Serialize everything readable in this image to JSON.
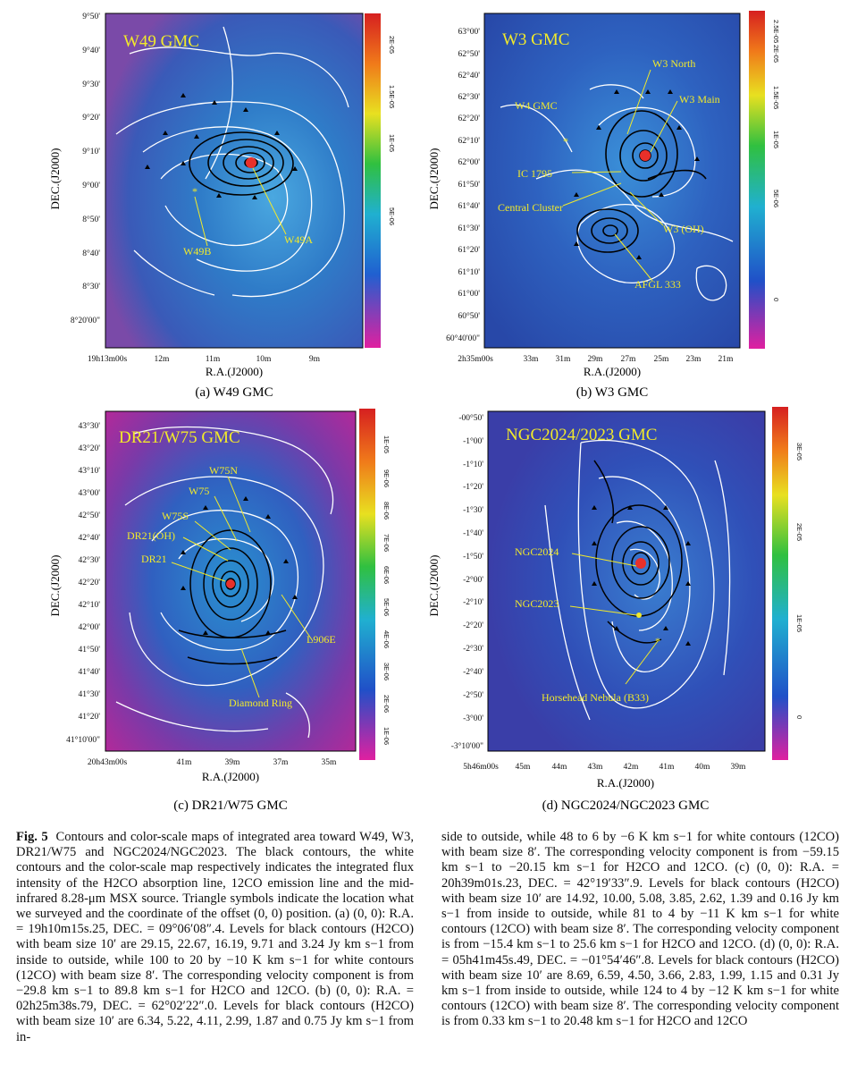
{
  "figure": {
    "panels": [
      {
        "id": "a",
        "title": "W49 GMC",
        "caption": "(a)  W49 GMC",
        "xlabel": "R.A.(J2000)",
        "ylabel": "DEC.(J2000)",
        "yticks": [
          "9°50'",
          "9°40'",
          "9°30'",
          "9°20'",
          "9°10'",
          "9°00'",
          "8°50'",
          "8°40'",
          "8°30'",
          "8°20'00\""
        ],
        "xticks": [
          "19h13m00s",
          "12m",
          "11m",
          "10m",
          "9m"
        ],
        "colorbar_ticks": [
          "2E-05",
          "1.5E-05",
          "1E-05",
          "5E-06"
        ],
        "annotations": [
          "W49B",
          "W49A"
        ]
      },
      {
        "id": "b",
        "title": "W3 GMC",
        "caption": "(b)  W3 GMC",
        "xlabel": "R.A.(J2000)",
        "ylabel": "DEC.(J2000)",
        "yticks": [
          "63°00'",
          "62°50'",
          "62°40'",
          "62°30'",
          "62°20'",
          "62°10'",
          "62°00'",
          "61°50'",
          "61°40'",
          "61°30'",
          "61°20'",
          "61°10'",
          "61°00'",
          "60°50'",
          "60°40'00\""
        ],
        "xticks": [
          "2h35m00s",
          "33m",
          "31m",
          "29m",
          "27m",
          "25m",
          "23m",
          "21m"
        ],
        "colorbar_ticks": [
          "2.5E-05",
          "2E-05",
          "1.5E-05",
          "1E-05",
          "5E-06",
          "0"
        ],
        "annotations": [
          "W3 North",
          "W3 Main",
          "W4 GMC",
          "IC 1795",
          "Central Cluster",
          "W3 (OH)",
          "AFGL 333"
        ]
      },
      {
        "id": "c",
        "title": "DR21/W75 GMC",
        "caption": "(c)  DR21/W75 GMC",
        "xlabel": "R.A.(J2000)",
        "ylabel": "DEC.(J2000)",
        "yticks": [
          "43°30'",
          "43°20'",
          "43°10'",
          "43°00'",
          "42°50'",
          "42°40'",
          "42°30'",
          "42°20'",
          "42°10'",
          "42°00'",
          "41°50'",
          "41°40'",
          "41°30'",
          "41°20'",
          "41°10'00\""
        ],
        "xticks": [
          "20h43m00s",
          "41m",
          "39m",
          "37m",
          "35m"
        ],
        "colorbar_ticks": [
          "1E-05",
          "9E-06",
          "8E-06",
          "7E-06",
          "6E-06",
          "5E-06",
          "4E-06",
          "3E-06",
          "2E-06",
          "1E-06"
        ],
        "annotations": [
          "W75N",
          "W75",
          "W75S",
          "DR21(OH)",
          "DR21",
          "L906E",
          "Diamond Ring"
        ]
      },
      {
        "id": "d",
        "title": "NGC2024/2023 GMC",
        "caption": "(d)  NGC2024/NGC2023 GMC",
        "xlabel": "R.A.(J2000)",
        "ylabel": "DEC.(J2000)",
        "yticks": [
          "-00°50'",
          "-1°00'",
          "-1°10'",
          "-1°20'",
          "-1°30'",
          "-1°40'",
          "-1°50'",
          "-2°00'",
          "-2°10'",
          "-2°20'",
          "-2°30'",
          "-2°40'",
          "-2°50'",
          "-3°00'",
          "-3°10'00\""
        ],
        "xticks": [
          "5h46m00s",
          "45m",
          "44m",
          "43m",
          "42m",
          "41m",
          "40m",
          "39m"
        ],
        "colorbar_ticks": [
          "3E-05",
          "2E-05",
          "1E-05",
          "0"
        ],
        "annotations": [
          "NGC2024",
          "NGC2023",
          "Horsehead Nebula (B33)"
        ]
      }
    ]
  },
  "caption": {
    "label": "Fig. 5",
    "left": [
      "Contours and color-scale maps of integrated area toward W49, W3, DR21/W75 and NGC2024/NGC2023. The black contours, the white contours and the color-scale map respectively indicates the integrated flux intensity of the H2CO absorption line, 12CO emission line and the mid-infrared 8.28-μm MSX source. Triangle symbols indicate the location what we surveyed and the coordinate of the offset (0, 0) position. (a) (0, 0): R.A. = 19h10m15s.25, DEC. = 09°06′08″.4. Levels for black contours (H2CO) with beam size 10′ are 29.15, 22.67, 16.19, 9.71 and 3.24 Jy km s−1 from inside to outside, while 100 to 20 by −10 K km s−1 for white contours (12CO) with beam size 8′. The corresponding velocity component is from −29.8 km s−1 to 89.8 km s−1 for H2CO and 12CO. (b) (0, 0): R.A. = 02h25m38s.79, DEC. = 62°02′22″.0. Levels for black contours (H2CO) with beam size 10′ are 6.34, 5.22, 4.11, 2.99, 1.87 and 0.75 Jy km s−1 from in-"
    ],
    "right": [
      "side to outside, while 48 to 6 by −6 K km s−1 for white contours (12CO) with beam size 8′. The corresponding velocity component is from −59.15 km s−1 to −20.15 km s−1 for H2CO and 12CO. (c) (0, 0): R.A. = 20h39m01s.23, DEC. = 42°19′33″.9. Levels for black contours (H2CO) with beam size 10′ are 14.92, 10.00, 5.08, 3.85, 2.62, 1.39 and 0.16 Jy km s−1 from inside to outside, while 81 to 4 by −11 K km s−1 for white contours (12CO) with beam size 8′. The corresponding velocity component is from −15.4 km s−1 to 25.6 km s−1 for H2CO and 12CO. (d) (0, 0): R.A. = 05h41m45s.49, DEC. = −01°54′46″.8. Levels for black contours (H2CO) with beam size 10′ are 8.69, 6.59, 4.50, 3.66, 2.83, 1.99, 1.15 and 0.31 Jy km s−1 from inside to outside, while 124 to 4 by −12 K km s−1 for white contours (12CO) with beam size 8′. The corresponding velocity component is from 0.33 km s−1 to 20.48 km s−1 for H2CO and 12CO"
    ]
  }
}
